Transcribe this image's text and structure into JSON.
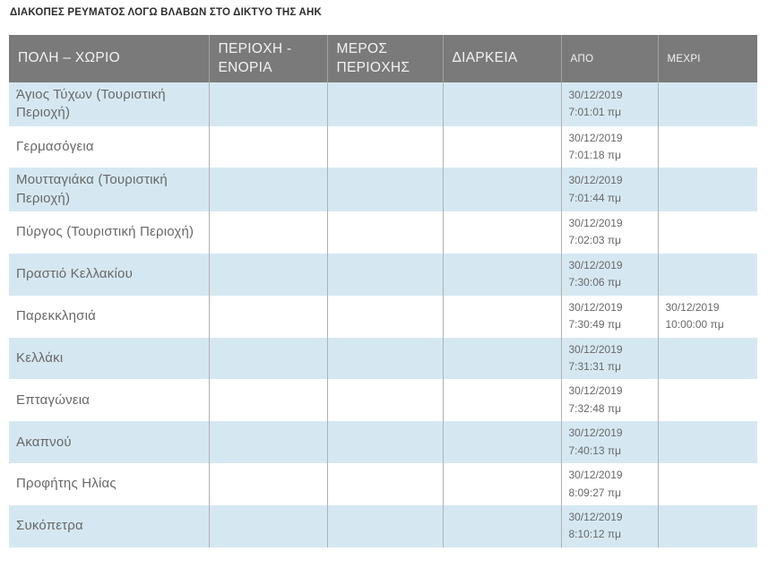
{
  "page": {
    "title": "ΔΙΑΚΟΠΕΣ ΡΕΥΜΑΤΟΣ ΛΟΓΩ ΒΛΑΒΩΝ ΣΤΟ ΔΙΚΤΥΟ ΤΗΣ ΑΗΚ"
  },
  "colors": {
    "header_bg": "#7a7a7a",
    "header_text": "#f2f2f2",
    "row_alt_bg": "#d5e8f2",
    "row_bg": "#ffffff",
    "body_text": "#686868",
    "cell_border": "#b0b0b0"
  },
  "table": {
    "columns": [
      {
        "label": "ΠΟΛΗ – ΧΩΡΙΟ"
      },
      {
        "label": "ΠΕΡΙΟΧΗ - ΕΝΟΡΙΑ"
      },
      {
        "label": "ΜΕΡΟΣ ΠΕΡΙΟΧΗΣ"
      },
      {
        "label": "ΔΙΑΡΚΕΙΑ"
      },
      {
        "label": "ΑΠΟ"
      },
      {
        "label": "ΜΕΧΡΙ"
      }
    ],
    "rows": [
      {
        "city": "Άγιος Τύχων (Τουριστική Περιοχή)",
        "area": "",
        "part": "",
        "duration": "",
        "from": "30/12/2019 7:01:01 πμ",
        "until": ""
      },
      {
        "city": "Γερμασόγεια",
        "area": "",
        "part": "",
        "duration": "",
        "from": "30/12/2019 7:01:18 πμ",
        "until": ""
      },
      {
        "city": "Μουτταγιάκα (Τουριστική Περιοχή)",
        "area": "",
        "part": "",
        "duration": "",
        "from": "30/12/2019 7:01:44 πμ",
        "until": ""
      },
      {
        "city": "Πύργος (Τουριστική Περιοχή)",
        "area": "",
        "part": "",
        "duration": "",
        "from": "30/12/2019 7:02:03 πμ",
        "until": ""
      },
      {
        "city": "Πραστιό Κελλακίου",
        "area": "",
        "part": "",
        "duration": "",
        "from": "30/12/2019 7:30:06 πμ",
        "until": ""
      },
      {
        "city": "Παρεκκλησιά",
        "area": "",
        "part": "",
        "duration": "",
        "from": "30/12/2019 7:30:49 πμ",
        "until": "30/12/2019 10:00:00 πμ"
      },
      {
        "city": "Κελλάκι",
        "area": "",
        "part": "",
        "duration": "",
        "from": "30/12/2019 7:31:31 πμ",
        "until": ""
      },
      {
        "city": "Επταγώνεια",
        "area": "",
        "part": "",
        "duration": "",
        "from": "30/12/2019 7:32:48 πμ",
        "until": ""
      },
      {
        "city": "Ακαπνού",
        "area": "",
        "part": "",
        "duration": "",
        "from": "30/12/2019 7:40:13 πμ",
        "until": ""
      },
      {
        "city": "Προφήτης Ηλίας",
        "area": "",
        "part": "",
        "duration": "",
        "from": "30/12/2019 8:09:27 πμ",
        "until": ""
      },
      {
        "city": "Συκόπετρα",
        "area": "",
        "part": "",
        "duration": "",
        "from": "30/12/2019 8:10:12 πμ",
        "until": ""
      }
    ]
  }
}
